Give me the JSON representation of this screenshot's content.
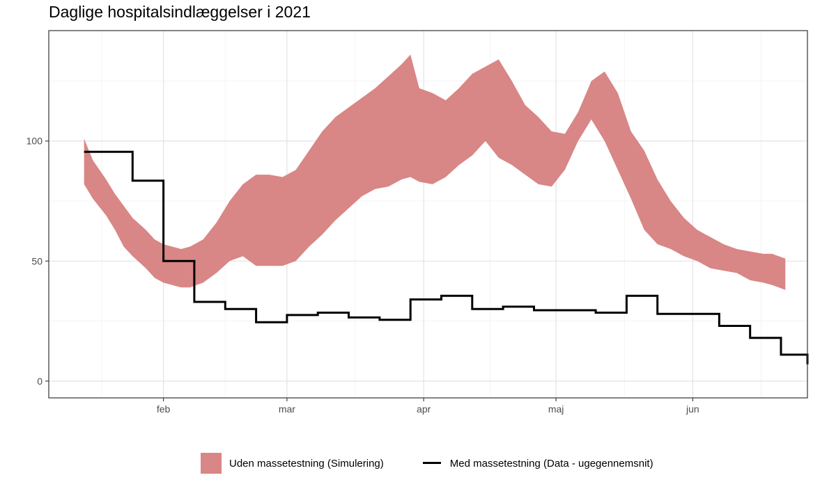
{
  "title": "Daglige hospitalsindlæggelser i 2021",
  "colors": {
    "band": "#d98686",
    "line": "#000000",
    "grid_major": "#e3e3e3",
    "grid_minor": "#f0f0f0",
    "panel_border": "#333333"
  },
  "legend": {
    "band_label": "Uden massetestning (Simulering)",
    "line_label": "Med massetestning (Data - ugegennemsnit)"
  },
  "chart_data": {
    "type": "area",
    "title": "Daglige hospitalsindlæggelser i 2021",
    "xlabel": "",
    "ylabel": "",
    "x_axis": {
      "type": "date",
      "range": [
        "2021-01-06",
        "2021-06-27"
      ],
      "tick_dates": [
        "2021-02-01",
        "2021-03-01",
        "2021-04-01",
        "2021-05-01",
        "2021-06-01"
      ],
      "tick_labels": [
        "feb",
        "mar",
        "apr",
        "maj",
        "jun"
      ]
    },
    "y_axis": {
      "range": [
        -7,
        146
      ],
      "ticks": [
        0,
        50,
        100
      ],
      "tick_labels": [
        "0",
        "50",
        "100"
      ]
    },
    "grid": true,
    "legend_position": "bottom",
    "series": [
      {
        "name": "Uden massetestning (Simulering)",
        "kind": "ribbon",
        "x": [
          "2021-01-14",
          "2021-01-16",
          "2021-01-19",
          "2021-01-21",
          "2021-01-23",
          "2021-01-25",
          "2021-01-28",
          "2021-01-30",
          "2021-02-01",
          "2021-02-03",
          "2021-02-05",
          "2021-02-07",
          "2021-02-10",
          "2021-02-13",
          "2021-02-16",
          "2021-02-19",
          "2021-02-22",
          "2021-02-25",
          "2021-02-28",
          "2021-03-03",
          "2021-03-06",
          "2021-03-09",
          "2021-03-12",
          "2021-03-15",
          "2021-03-18",
          "2021-03-21",
          "2021-03-24",
          "2021-03-27",
          "2021-03-29",
          "2021-03-31",
          "2021-04-03",
          "2021-04-06",
          "2021-04-09",
          "2021-04-12",
          "2021-04-15",
          "2021-04-18",
          "2021-04-21",
          "2021-04-24",
          "2021-04-27",
          "2021-04-30",
          "2021-05-03",
          "2021-05-06",
          "2021-05-09",
          "2021-05-12",
          "2021-05-15",
          "2021-05-18",
          "2021-05-21",
          "2021-05-24",
          "2021-05-27",
          "2021-05-30",
          "2021-06-02",
          "2021-06-05",
          "2021-06-08",
          "2021-06-11",
          "2021-06-14",
          "2021-06-17",
          "2021-06-19",
          "2021-06-22"
        ],
        "upper": [
          101,
          92,
          84,
          78,
          73,
          68,
          63,
          59,
          57,
          56,
          55,
          56,
          59,
          66,
          75,
          82,
          86,
          86,
          85,
          88,
          96,
          104,
          110,
          114,
          118,
          122,
          127,
          132,
          136,
          122,
          120,
          117,
          122,
          128,
          131,
          134,
          125,
          115,
          110,
          104,
          103,
          112,
          125,
          129,
          120,
          104,
          96,
          84,
          75,
          68,
          63,
          60,
          57,
          55,
          54,
          53,
          53,
          51
        ],
        "lower": [
          82,
          76,
          69,
          63,
          56,
          52,
          47,
          43,
          41,
          40,
          39,
          39,
          41,
          45,
          50,
          52,
          48,
          48,
          48,
          50,
          56,
          61,
          67,
          72,
          77,
          80,
          81,
          84,
          85,
          83,
          82,
          85,
          90,
          94,
          100,
          93,
          90,
          86,
          82,
          81,
          88,
          100,
          109,
          100,
          88,
          76,
          63,
          57,
          55,
          52,
          50,
          47,
          46,
          45,
          42,
          41,
          40,
          38
        ]
      },
      {
        "name": "Med massetestning (Data - ugegennemsnit)",
        "kind": "step",
        "x": [
          "2021-01-14",
          "2021-01-18",
          "2021-01-25",
          "2021-02-01",
          "2021-02-08",
          "2021-02-15",
          "2021-02-22",
          "2021-03-01",
          "2021-03-08",
          "2021-03-15",
          "2021-03-22",
          "2021-03-29",
          "2021-04-05",
          "2021-04-12",
          "2021-04-19",
          "2021-04-26",
          "2021-05-03",
          "2021-05-10",
          "2021-05-17",
          "2021-05-24",
          "2021-05-31",
          "2021-06-07",
          "2021-06-14",
          "2021-06-21"
        ],
        "values": [
          95.5,
          95.5,
          83.5,
          50,
          33,
          30,
          24.5,
          27.5,
          28.5,
          26.5,
          25.5,
          34,
          35.5,
          30,
          31,
          29.5,
          29.5,
          28.5,
          35.5,
          28,
          28,
          23,
          18,
          11
        ],
        "end_x": "2021-06-27",
        "end_value": 7
      }
    ]
  }
}
